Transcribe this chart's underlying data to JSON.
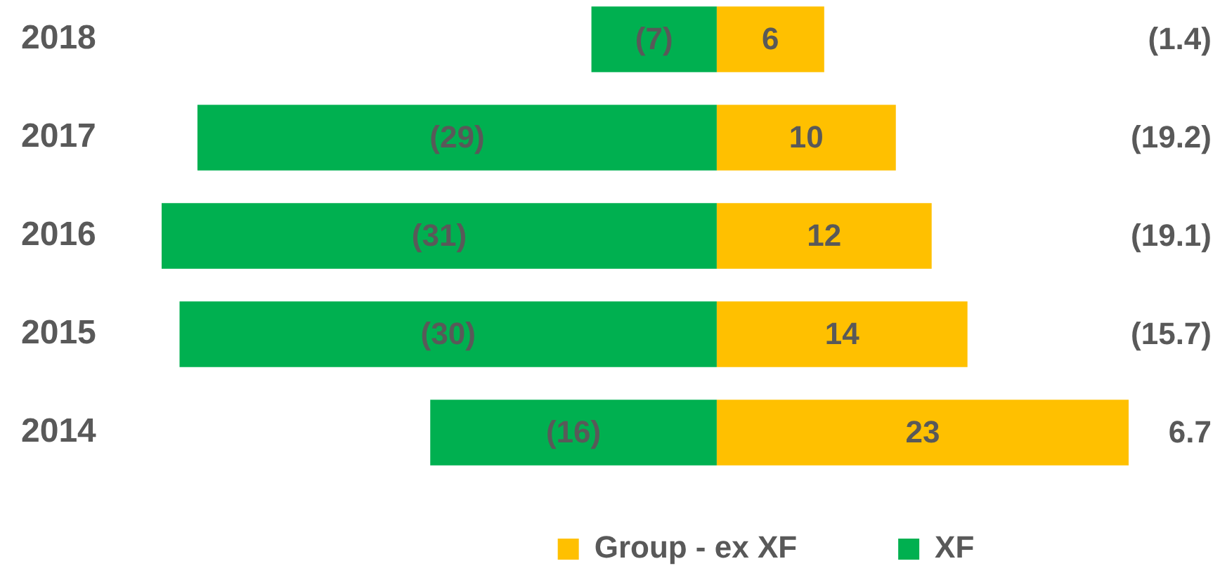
{
  "chart_data": {
    "type": "bar",
    "orientation": "horizontal",
    "stacked": true,
    "categories": [
      "2018",
      "2017",
      "2016",
      "2015",
      "2014"
    ],
    "series": [
      {
        "name": "Group - ex XF",
        "color": "#ffc000",
        "values": [
          6,
          10,
          12,
          14,
          23
        ],
        "value_labels": [
          "6",
          "10",
          "12",
          "14",
          "23"
        ]
      },
      {
        "name": "XF",
        "color": "#00b050",
        "values": [
          -7,
          -29,
          -31,
          -30,
          -16
        ],
        "value_labels": [
          "(7)",
          "(29)",
          "(31)",
          "(30)",
          "(16)"
        ]
      }
    ],
    "annotations": [
      "(1.4)",
      "(19.2)",
      "(19.1)",
      "(15.7)",
      "6.7"
    ],
    "legend": "bottom",
    "tick_labels": "y"
  }
}
